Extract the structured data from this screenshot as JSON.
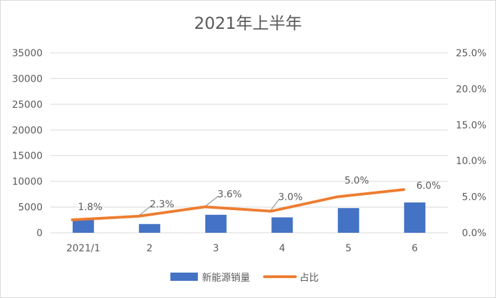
{
  "chart_data": {
    "type": "bar",
    "title": "2021年上半年",
    "categories": [
      "2021/1",
      "2",
      "3",
      "4",
      "5",
      "6"
    ],
    "series": [
      {
        "name": "新能源销量",
        "type": "bar",
        "axis": "left",
        "color": "#4472C4",
        "values": [
          2700,
          1700,
          3500,
          3000,
          4800,
          5900
        ]
      },
      {
        "name": "占比",
        "type": "line",
        "axis": "right",
        "color": "#ED7D31",
        "values": [
          0.018,
          0.023,
          0.036,
          0.03,
          0.05,
          0.06
        ],
        "labels": [
          "1.8%",
          "2.3%",
          "3.6%",
          "3.0%",
          "5.0%",
          "6.0%"
        ]
      }
    ],
    "y_left": {
      "min": 0,
      "max": 35000,
      "ticks": [
        "0",
        "5000",
        "10000",
        "15000",
        "20000",
        "25000",
        "30000",
        "35000"
      ]
    },
    "y_right": {
      "min": 0,
      "max": 0.25,
      "ticks": [
        "0.0%",
        "5.0%",
        "10.0%",
        "15.0%",
        "20.0%",
        "25.0%"
      ]
    },
    "grid": true,
    "legend": "bottom"
  }
}
